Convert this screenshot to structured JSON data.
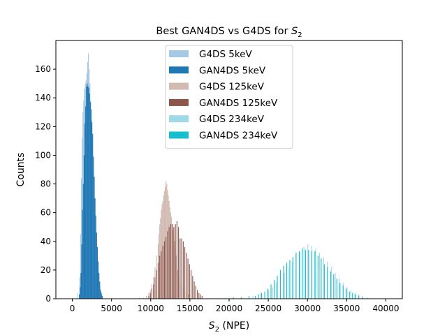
{
  "chart_data": {
    "type": "histogram",
    "title_main": "Best GAN4DS vs G4DS for ",
    "title_sym": "S",
    "title_sub": "2",
    "xlabel_sym": "S",
    "xlabel_sub": "2",
    "xlabel_rest": " (NPE)",
    "ylabel": "Counts",
    "xlim": [
      -2100,
      42100
    ],
    "ylim": [
      0,
      180
    ],
    "xticks": [
      0,
      5000,
      10000,
      15000,
      20000,
      25000,
      30000,
      35000,
      40000
    ],
    "yticks": [
      0,
      20,
      40,
      60,
      80,
      100,
      120,
      140,
      160
    ],
    "legend_position": "upper center",
    "series": [
      {
        "name": "G4DS 5keV",
        "color": "#a6c8e2",
        "bins": [
          [
            650,
            4
          ],
          [
            900,
            15
          ],
          [
            1000,
            45
          ],
          [
            1100,
            84
          ],
          [
            1200,
            112
          ],
          [
            1300,
            130
          ],
          [
            1400,
            138
          ],
          [
            1500,
            146
          ],
          [
            1600,
            150
          ],
          [
            1700,
            152
          ],
          [
            1800,
            157
          ],
          [
            1900,
            165
          ],
          [
            2000,
            171
          ],
          [
            2100,
            160
          ],
          [
            2200,
            150
          ],
          [
            2300,
            138
          ],
          [
            2400,
            125
          ],
          [
            2500,
            112
          ],
          [
            2600,
            90
          ],
          [
            2700,
            70
          ],
          [
            2800,
            55
          ],
          [
            2900,
            46
          ],
          [
            3000,
            36
          ],
          [
            3100,
            28
          ],
          [
            3200,
            22
          ],
          [
            3300,
            16
          ],
          [
            3400,
            12
          ],
          [
            3500,
            8
          ],
          [
            3600,
            5
          ],
          [
            3700,
            3
          ],
          [
            3800,
            2
          ]
        ]
      },
      {
        "name": "GAN4DS 5keV",
        "color": "#1f77b4",
        "bins": [
          [
            850,
            3
          ],
          [
            950,
            8
          ],
          [
            1050,
            18
          ],
          [
            1150,
            38
          ],
          [
            1250,
            62
          ],
          [
            1350,
            80
          ],
          [
            1450,
            100
          ],
          [
            1550,
            122
          ],
          [
            1650,
            134
          ],
          [
            1750,
            148
          ],
          [
            1850,
            150
          ],
          [
            1950,
            148
          ],
          [
            2050,
            147
          ],
          [
            2150,
            143
          ],
          [
            2250,
            137
          ],
          [
            2350,
            132
          ],
          [
            2450,
            123
          ],
          [
            2550,
            115
          ],
          [
            2650,
            99
          ],
          [
            2750,
            85
          ],
          [
            2850,
            70
          ],
          [
            2950,
            58
          ],
          [
            3050,
            46
          ],
          [
            3150,
            36
          ],
          [
            3250,
            26
          ],
          [
            3350,
            18
          ],
          [
            3450,
            12
          ],
          [
            3550,
            6
          ],
          [
            3650,
            4
          ],
          [
            3750,
            2
          ]
        ]
      },
      {
        "name": "G4DS 125keV",
        "color": "#d0bab1",
        "bins": [
          [
            8500,
            1
          ],
          [
            9000,
            1
          ],
          [
            9400,
            2
          ],
          [
            9700,
            4
          ],
          [
            9900,
            6
          ],
          [
            10100,
            10
          ],
          [
            10300,
            15
          ],
          [
            10500,
            22
          ],
          [
            10700,
            30
          ],
          [
            10900,
            38
          ],
          [
            11000,
            45
          ],
          [
            11100,
            52
          ],
          [
            11200,
            56
          ],
          [
            11300,
            62
          ],
          [
            11400,
            66
          ],
          [
            11500,
            68
          ],
          [
            11600,
            72
          ],
          [
            11700,
            75
          ],
          [
            11800,
            78
          ],
          [
            11900,
            82
          ],
          [
            12000,
            80
          ],
          [
            12100,
            76
          ],
          [
            12200,
            72
          ],
          [
            12300,
            68
          ],
          [
            12400,
            64
          ],
          [
            12500,
            60
          ],
          [
            12600,
            57
          ],
          [
            12700,
            52
          ],
          [
            12800,
            48
          ],
          [
            12900,
            45
          ],
          [
            13000,
            40
          ],
          [
            13100,
            35
          ],
          [
            13200,
            30
          ],
          [
            13300,
            25
          ],
          [
            13400,
            20
          ],
          [
            13500,
            15
          ],
          [
            13700,
            12
          ],
          [
            13900,
            9
          ],
          [
            14100,
            7
          ],
          [
            14300,
            5
          ],
          [
            14500,
            4
          ],
          [
            14800,
            3
          ],
          [
            15100,
            2
          ],
          [
            15500,
            1
          ]
        ]
      },
      {
        "name": "GAN4DS 125keV",
        "color": "#8c564b",
        "bins": [
          [
            9700,
            2
          ],
          [
            9900,
            4
          ],
          [
            10100,
            7
          ],
          [
            10300,
            10
          ],
          [
            10500,
            15
          ],
          [
            10700,
            20
          ],
          [
            10900,
            25
          ],
          [
            11100,
            30
          ],
          [
            11300,
            33
          ],
          [
            11500,
            37
          ],
          [
            11700,
            40
          ],
          [
            11900,
            43
          ],
          [
            12100,
            47
          ],
          [
            12300,
            50
          ],
          [
            12500,
            52
          ],
          [
            12700,
            52
          ],
          [
            12900,
            50
          ],
          [
            13100,
            52
          ],
          [
            13300,
            54
          ],
          [
            13500,
            50
          ],
          [
            13700,
            42
          ],
          [
            13900,
            42
          ],
          [
            14100,
            40
          ],
          [
            14300,
            36
          ],
          [
            14500,
            32
          ],
          [
            14700,
            28
          ],
          [
            14900,
            24
          ],
          [
            15100,
            20
          ],
          [
            15300,
            16
          ],
          [
            15500,
            12
          ],
          [
            15700,
            9
          ],
          [
            15900,
            6
          ],
          [
            16100,
            4
          ],
          [
            16300,
            3
          ],
          [
            16500,
            2
          ]
        ]
      },
      {
        "name": "G4DS 234keV",
        "color": "#9edae5",
        "bins": [
          [
            21500,
            1
          ],
          [
            23000,
            2
          ],
          [
            24000,
            4
          ],
          [
            25000,
            6
          ],
          [
            25500,
            8
          ],
          [
            26000,
            11
          ],
          [
            26500,
            14
          ],
          [
            27000,
            18
          ],
          [
            27500,
            22
          ],
          [
            28000,
            26
          ],
          [
            28500,
            30
          ],
          [
            29000,
            33
          ],
          [
            29500,
            36
          ],
          [
            30000,
            38
          ],
          [
            30500,
            37
          ],
          [
            31000,
            35
          ],
          [
            31500,
            32
          ],
          [
            32000,
            29
          ],
          [
            32500,
            26
          ],
          [
            33000,
            22
          ],
          [
            33500,
            18
          ],
          [
            34000,
            14
          ],
          [
            34500,
            11
          ],
          [
            35000,
            8
          ],
          [
            35500,
            6
          ],
          [
            36000,
            4
          ],
          [
            36500,
            3
          ],
          [
            37000,
            2
          ],
          [
            37600,
            1
          ]
        ]
      },
      {
        "name": "GAN4DS 234keV",
        "color": "#17becf",
        "bins": [
          [
            20500,
            1
          ],
          [
            21500,
            1
          ],
          [
            22500,
            2
          ],
          [
            23300,
            2
          ],
          [
            23700,
            3
          ],
          [
            24100,
            4
          ],
          [
            24500,
            5
          ],
          [
            24900,
            7
          ],
          [
            25300,
            10
          ],
          [
            25700,
            13
          ],
          [
            26100,
            16
          ],
          [
            26500,
            20
          ],
          [
            26900,
            23
          ],
          [
            27300,
            25
          ],
          [
            27700,
            27
          ],
          [
            28100,
            29
          ],
          [
            28500,
            32
          ],
          [
            28900,
            33
          ],
          [
            29300,
            35
          ],
          [
            29700,
            34
          ],
          [
            30100,
            34
          ],
          [
            30500,
            33
          ],
          [
            30900,
            33
          ],
          [
            31300,
            30
          ],
          [
            31700,
            28
          ],
          [
            32100,
            24
          ],
          [
            32500,
            22
          ],
          [
            32900,
            19
          ],
          [
            33300,
            17
          ],
          [
            33700,
            14
          ],
          [
            34100,
            11
          ],
          [
            34500,
            9
          ],
          [
            34900,
            7
          ],
          [
            35300,
            5
          ],
          [
            35700,
            4
          ],
          [
            36100,
            3
          ],
          [
            36500,
            2
          ],
          [
            37000,
            1
          ]
        ]
      }
    ]
  }
}
